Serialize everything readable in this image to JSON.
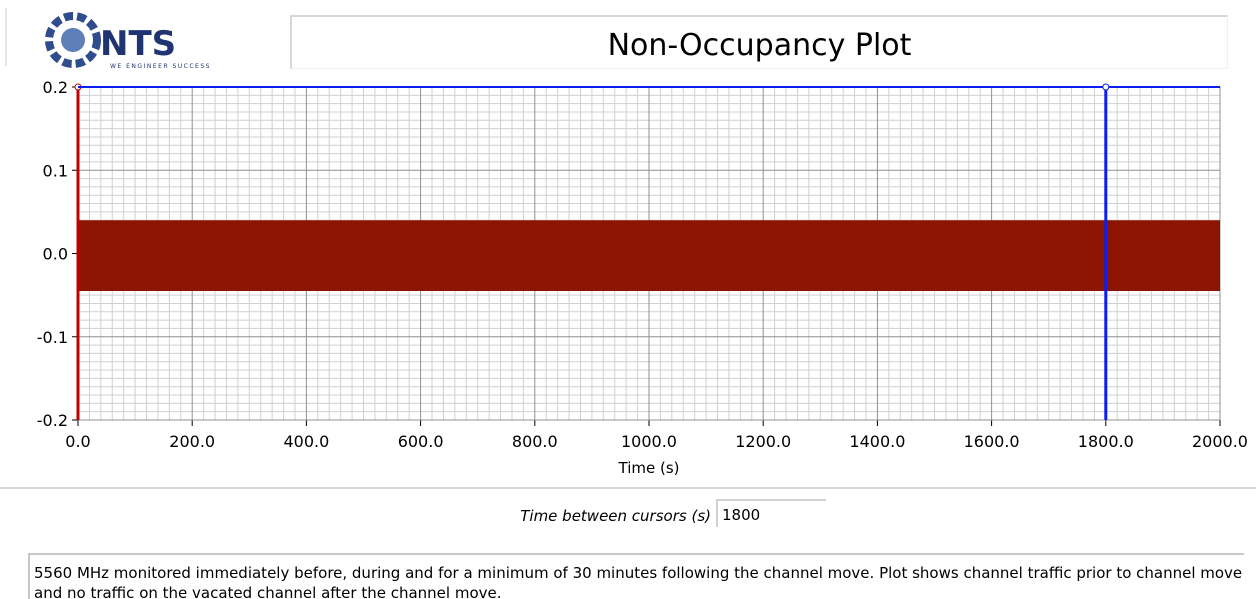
{
  "header": {
    "logo_text": "NTS",
    "logo_tagline": "WE ENGINEER SUCCESS",
    "title": "Non-Occupancy Plot"
  },
  "chart_data": {
    "type": "band",
    "xlabel": "Time (s)",
    "xlim": [
      0,
      2000
    ],
    "xticks": [
      {
        "value": 0,
        "label": "0.0"
      },
      {
        "value": 200,
        "label": "200.0"
      },
      {
        "value": 400,
        "label": "400.0"
      },
      {
        "value": 600,
        "label": "600.0"
      },
      {
        "value": 800,
        "label": "800.0"
      },
      {
        "value": 1000,
        "label": "1000.0"
      },
      {
        "value": 1200,
        "label": "1200.0"
      },
      {
        "value": 1400,
        "label": "1400.0"
      },
      {
        "value": 1600,
        "label": "1600.0"
      },
      {
        "value": 1800,
        "label": "1800.0"
      },
      {
        "value": 2000,
        "label": "2000.0"
      }
    ],
    "ylim": [
      -0.2,
      0.2
    ],
    "yticks": [
      -0.2,
      -0.1,
      {
        "value": 0,
        "label": "0.0"
      },
      0.1,
      0.2
    ],
    "grid": true,
    "series": [
      {
        "color": "#8b1500",
        "x": [
          0,
          2000
        ],
        "upper": [
          0.04,
          0.04
        ],
        "lower": [
          -0.045,
          -0.045
        ]
      }
    ],
    "cursors": [
      {
        "x": 0,
        "y": 0.2,
        "color": "#c00000"
      },
      {
        "x": 1800,
        "y": 0.2,
        "color": "#0a1ef0"
      }
    ]
  },
  "cursor_readout": {
    "label": "Time between cursors (s)",
    "value": 1800
  },
  "description": "5560 MHz monitored immediately before, during and for a minimum of 30 minutes following the channel move. Plot shows channel traffic prior to channel move and no traffic on the vacated channel after the channel move."
}
